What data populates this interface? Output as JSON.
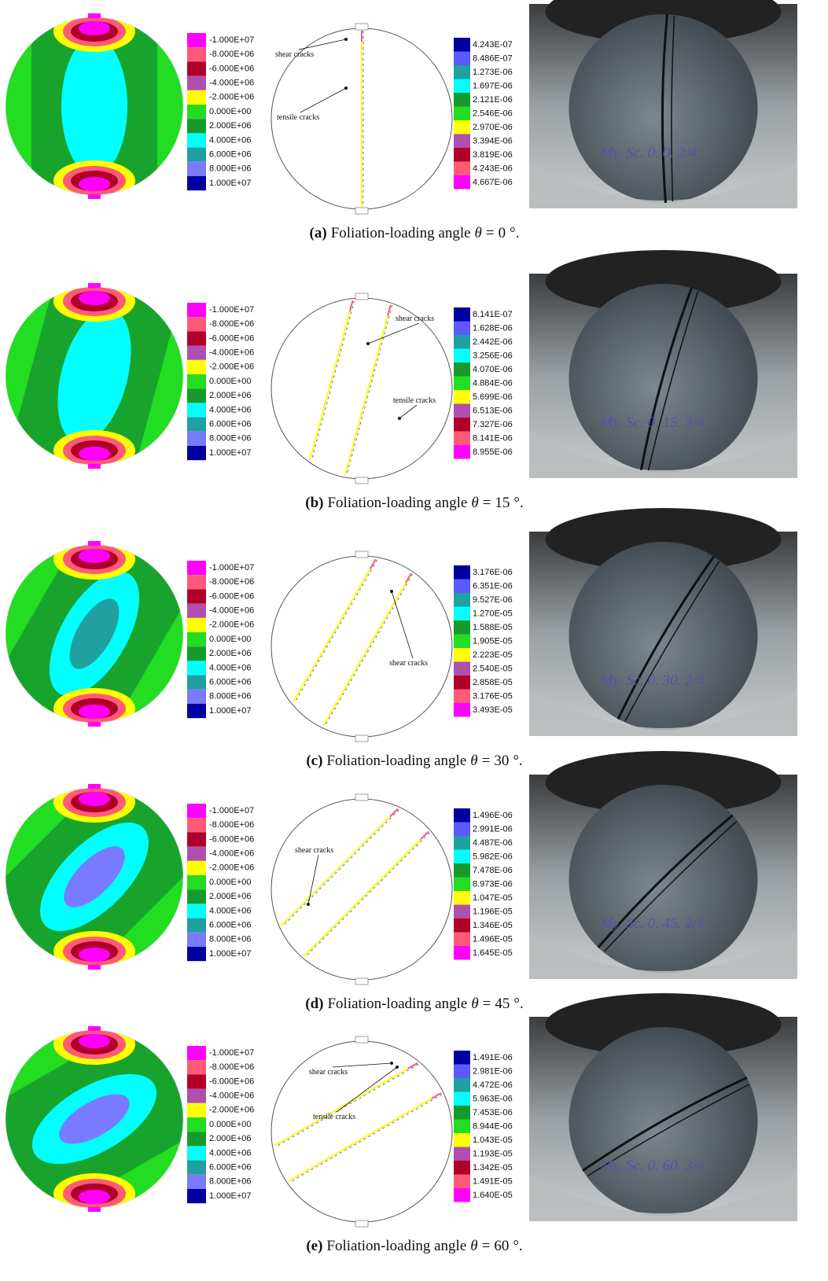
{
  "stress_legend": [
    "-1.000E+07",
    "-8.000E+06",
    "-6.000E+06",
    "-4.000E+06",
    "-2.000E+06",
    "0.000E+00",
    "2.000E+06",
    "4.000E+06",
    "6.000E+06",
    "8.000E+06",
    "1.000E+07"
  ],
  "caption_text": "Foliation-loading angle",
  "symbol": "θ",
  "equals": "=",
  "unit": "°.",
  "panels": [
    {
      "label": "(a)",
      "angle": 0,
      "crack_legend": [
        "4.243E-07",
        "8.486E-07",
        "1.273E-06",
        "1.697E-06",
        "2.121E-06",
        "2.546E-06",
        "2.970E-06",
        "3.394E-06",
        "3.819E-06",
        "4.243E-06",
        "4.667E-06"
      ],
      "annotations": [
        "shear cracks",
        "tensile cracks"
      ],
      "photo_label": "My. Sc. 0. 0. 2/4"
    },
    {
      "label": "(b)",
      "angle": 15,
      "crack_legend": [
        "8.141E-07",
        "1.628E-06",
        "2.442E-06",
        "3.256E-06",
        "4.070E-06",
        "4.884E-06",
        "5.699E-06",
        "6.513E-06",
        "7.327E-06",
        "8.141E-06",
        "8.955E-06"
      ],
      "annotations": [
        "shear cracks",
        "tensile cracks"
      ],
      "photo_label": "My. Sc. 0. 15. 3/4"
    },
    {
      "label": "(c)",
      "angle": 30,
      "crack_legend": [
        "3.176E-06",
        "6.351E-06",
        "9.527E-06",
        "1.270E-05",
        "1.588E-05",
        "1.905E-05",
        "2.223E-05",
        "2.540E-05",
        "2.858E-05",
        "3.176E-05",
        "3.493E-05"
      ],
      "annotations": [
        "shear cracks"
      ],
      "photo_label": "My. Sc. 0. 30. 2/4"
    },
    {
      "label": "(d)",
      "angle": 45,
      "crack_legend": [
        "1.496E-06",
        "2.991E-06",
        "4.487E-06",
        "5.982E-06",
        "7.478E-06",
        "8.973E-06",
        "1.047E-05",
        "1.196E-05",
        "1.346E-05",
        "1.496E-05",
        "1.645E-05"
      ],
      "annotations": [
        "shear cracks"
      ],
      "photo_label": "My. Sc. 0. 45. 2/4"
    },
    {
      "label": "(e)",
      "angle": 60,
      "crack_legend": [
        "1.491E-06",
        "2.981E-06",
        "4.472E-06",
        "5.963E-06",
        "7.453E-06",
        "8.944E-06",
        "1.043E-05",
        "1.193E-05",
        "1.342E-05",
        "1.491E-05",
        "1.640E-05"
      ],
      "annotations": [
        "shear cracks",
        "tensile cracks"
      ],
      "photo_label": "My. Sc. 0. 60. 3/4"
    }
  ]
}
